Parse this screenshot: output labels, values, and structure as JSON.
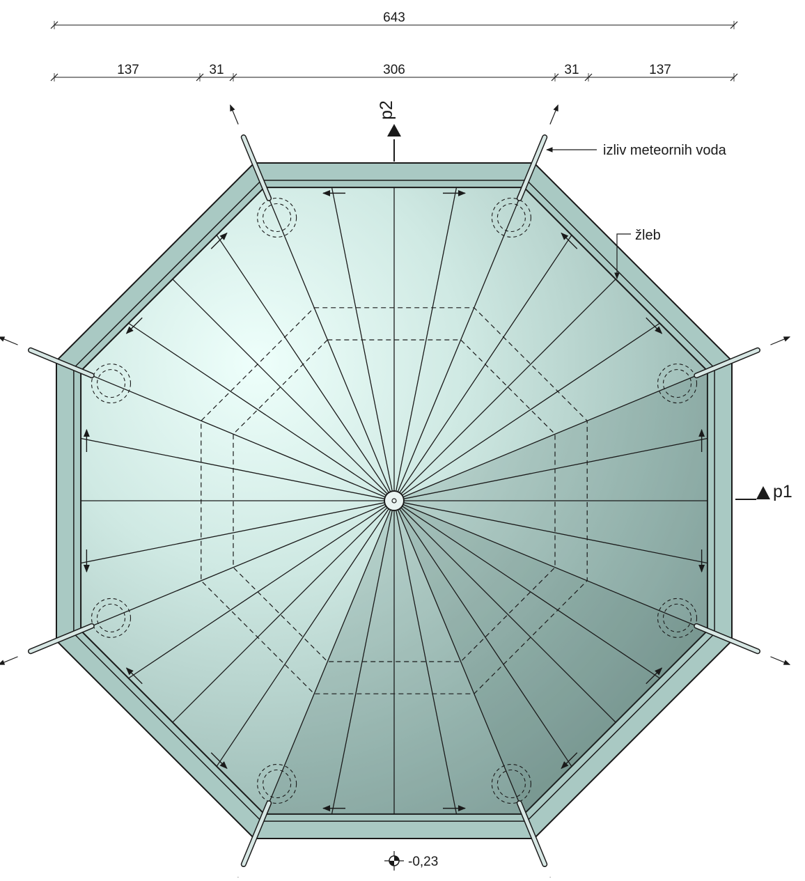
{
  "dimensions": {
    "overall": "643",
    "segments": [
      "137",
      "31",
      "306",
      "31",
      "137"
    ]
  },
  "labels": {
    "outlet": "izliv meteornih voda",
    "gutter": "žleb"
  },
  "sections": {
    "p1": "p1",
    "p2": "p2"
  },
  "level": "-0,23",
  "colors": {
    "roof_light": "#dff8f3",
    "roof_mid": "#b9d6d0",
    "roof_dark": "#7f9c97",
    "eave": "#a9c9c3",
    "line": "#1a1a1a"
  }
}
